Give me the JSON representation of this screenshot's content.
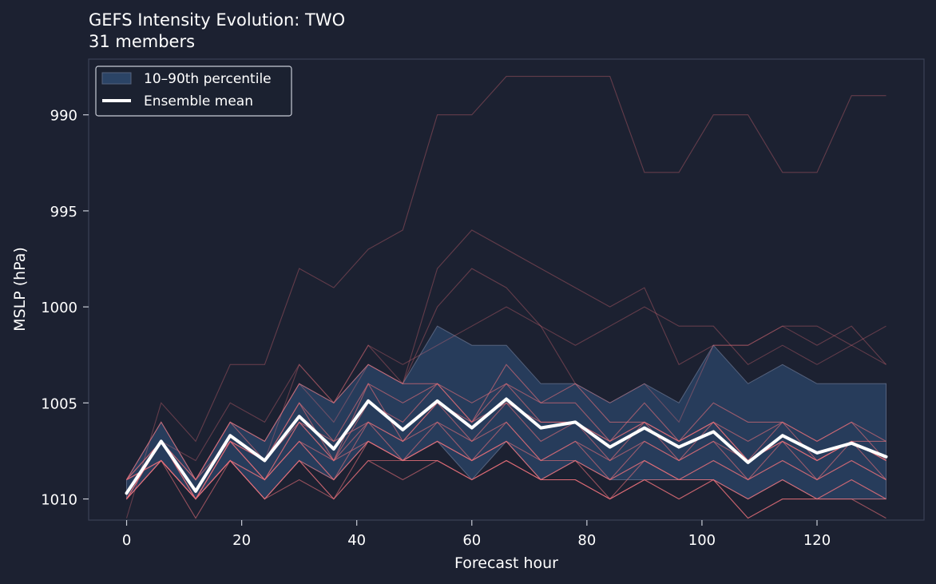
{
  "colors": {
    "background": "#1c2131",
    "band_fill": "#2b4466",
    "band_edge": "#56627d",
    "member_line": "#e8707a",
    "mean_line": "#ffffff",
    "axis": "#3a4256",
    "text": "#ffffff"
  },
  "chart_data": {
    "type": "line",
    "title": "GEFS Intensity Evolution: TWO",
    "subtitle": "31 members",
    "xlabel": "Forecast hour",
    "ylabel": "MSLP (hPa)",
    "xlim": [
      -6.6,
      138.6
    ],
    "ylim": [
      1011.1,
      987.1
    ],
    "y_inverted": true,
    "x_ticks": [
      0,
      20,
      40,
      60,
      80,
      100,
      120
    ],
    "y_ticks": [
      990,
      995,
      1000,
      1005,
      1010
    ],
    "grid": false,
    "legend_position": "top-left",
    "legend": [
      "10–90th percentile",
      "Ensemble mean"
    ],
    "x": [
      0,
      6,
      12,
      18,
      24,
      30,
      36,
      42,
      48,
      54,
      60,
      66,
      72,
      78,
      84,
      90,
      96,
      102,
      108,
      114,
      120,
      126,
      132
    ],
    "band_upper": [
      1009,
      1006,
      1009,
      1006,
      1007,
      1004,
      1005,
      1003,
      1004,
      1001,
      1002,
      1002,
      1004,
      1004,
      1005,
      1004,
      1005,
      1002,
      1004,
      1003,
      1004,
      1004,
      1004
    ],
    "band_lower": [
      1010,
      1008,
      1010,
      1008,
      1010,
      1008,
      1009,
      1007,
      1008,
      1007,
      1009,
      1007,
      1009,
      1008,
      1009,
      1009,
      1009,
      1009,
      1010,
      1009,
      1010,
      1010,
      1010
    ],
    "mean": [
      1009.7,
      1007.0,
      1009.6,
      1006.7,
      1008.0,
      1005.7,
      1007.4,
      1004.9,
      1006.4,
      1004.9,
      1006.3,
      1004.8,
      1006.3,
      1006.0,
      1007.3,
      1006.3,
      1007.3,
      1006.5,
      1008.1,
      1006.7,
      1007.6,
      1007.1,
      1007.8
    ],
    "members": [
      {
        "values": [
          1011,
          1005,
          1007,
          1003,
          1003,
          998,
          999,
          997,
          996,
          990,
          990,
          988,
          988,
          988,
          988,
          993,
          993,
          990,
          990,
          993,
          993,
          989,
          989
        ]
      },
      {
        "values": [
          1010,
          1007,
          1008,
          1005,
          1006,
          1003,
          1005,
          1002,
          1004,
          998,
          996,
          997,
          998,
          999,
          1000,
          999,
          1003,
          1002,
          1002,
          1001,
          1002,
          1001,
          1003
        ]
      },
      {
        "values": [
          1009,
          1006,
          1009,
          1006,
          1007,
          1004,
          1006,
          1003,
          1004,
          1000,
          998,
          999,
          1001,
          1004,
          1005,
          1004,
          1006,
          1002,
          1002,
          1001,
          1001,
          1002,
          1001
        ]
      },
      {
        "values": [
          1010,
          1007,
          1010,
          1007,
          1008,
          1003,
          1005,
          1002,
          1003,
          1002,
          1001,
          1000,
          1001,
          1002,
          1001,
          1000,
          1001,
          1001,
          1003,
          1002,
          1003,
          1002,
          1003
        ]
      },
      {
        "values": [
          1009,
          1006,
          1009,
          1006,
          1007,
          1004,
          1005,
          1003,
          1004,
          1004,
          1006,
          1003,
          1005,
          1005,
          1007,
          1005,
          1007,
          1005,
          1006,
          1006,
          1007,
          1006,
          1008
        ]
      },
      {
        "values": [
          1009,
          1007,
          1010,
          1007,
          1008,
          1006,
          1007,
          1004,
          1005,
          1004,
          1005,
          1004,
          1005,
          1004,
          1006,
          1006,
          1007,
          1006,
          1007,
          1006,
          1007,
          1006,
          1007
        ]
      },
      {
        "values": [
          1010,
          1007,
          1009,
          1007,
          1009,
          1006,
          1008,
          1005,
          1006,
          1004,
          1006,
          1004,
          1006,
          1006,
          1007,
          1006,
          1007,
          1006,
          1008,
          1006,
          1008,
          1007,
          1007
        ]
      },
      {
        "values": [
          1009,
          1007,
          1010,
          1007,
          1008,
          1005,
          1008,
          1004,
          1007,
          1005,
          1007,
          1005,
          1007,
          1006,
          1008,
          1006,
          1008,
          1006,
          1008,
          1007,
          1008,
          1007,
          1008
        ]
      },
      {
        "values": [
          1010,
          1007,
          1009,
          1006,
          1008,
          1005,
          1007,
          1006,
          1007,
          1005,
          1006,
          1005,
          1006,
          1006,
          1007,
          1006,
          1007,
          1006,
          1008,
          1007,
          1008,
          1007,
          1008
        ]
      },
      {
        "values": [
          1009,
          1008,
          1010,
          1007,
          1009,
          1006,
          1008,
          1006,
          1007,
          1006,
          1007,
          1006,
          1008,
          1007,
          1008,
          1007,
          1008,
          1007,
          1008,
          1007,
          1008,
          1007,
          1009
        ]
      },
      {
        "values": [
          1010,
          1008,
          1010,
          1008,
          1009,
          1007,
          1009,
          1006,
          1008,
          1006,
          1008,
          1006,
          1008,
          1007,
          1009,
          1007,
          1008,
          1007,
          1009,
          1007,
          1009,
          1007,
          1008
        ]
      },
      {
        "values": [
          1010,
          1007,
          1010,
          1007,
          1009,
          1007,
          1008,
          1007,
          1008,
          1007,
          1008,
          1007,
          1008,
          1008,
          1009,
          1008,
          1009,
          1008,
          1009,
          1008,
          1009,
          1008,
          1009
        ]
      },
      {
        "values": [
          1010,
          1008,
          1011,
          1008,
          1010,
          1008,
          1009,
          1007,
          1008,
          1007,
          1008,
          1007,
          1009,
          1008,
          1009,
          1008,
          1009,
          1008,
          1009,
          1008,
          1009,
          1008,
          1009
        ]
      },
      {
        "values": [
          1009,
          1008,
          1010,
          1008,
          1010,
          1008,
          1010,
          1007,
          1008,
          1008,
          1009,
          1008,
          1009,
          1008,
          1010,
          1008,
          1009,
          1009,
          1010,
          1009,
          1010,
          1009,
          1010
        ]
      },
      {
        "values": [
          1010,
          1008,
          1010,
          1008,
          1010,
          1009,
          1010,
          1008,
          1009,
          1008,
          1009,
          1008,
          1009,
          1009,
          1010,
          1009,
          1010,
          1009,
          1011,
          1010,
          1010,
          1010,
          1010
        ]
      },
      {
        "values": [
          1010,
          1008,
          1010,
          1008,
          1009,
          1007,
          1009,
          1007,
          1008,
          1007,
          1008,
          1007,
          1009,
          1009,
          1010,
          1009,
          1009,
          1009,
          1010,
          1009,
          1010,
          1009,
          1010
        ]
      },
      {
        "values": [
          1009,
          1008,
          1010,
          1008,
          1010,
          1008,
          1010,
          1008,
          1008,
          1008,
          1009,
          1008,
          1009,
          1009,
          1010,
          1009,
          1010,
          1009,
          1011,
          1010,
          1010,
          1010,
          1011
        ]
      }
    ]
  }
}
